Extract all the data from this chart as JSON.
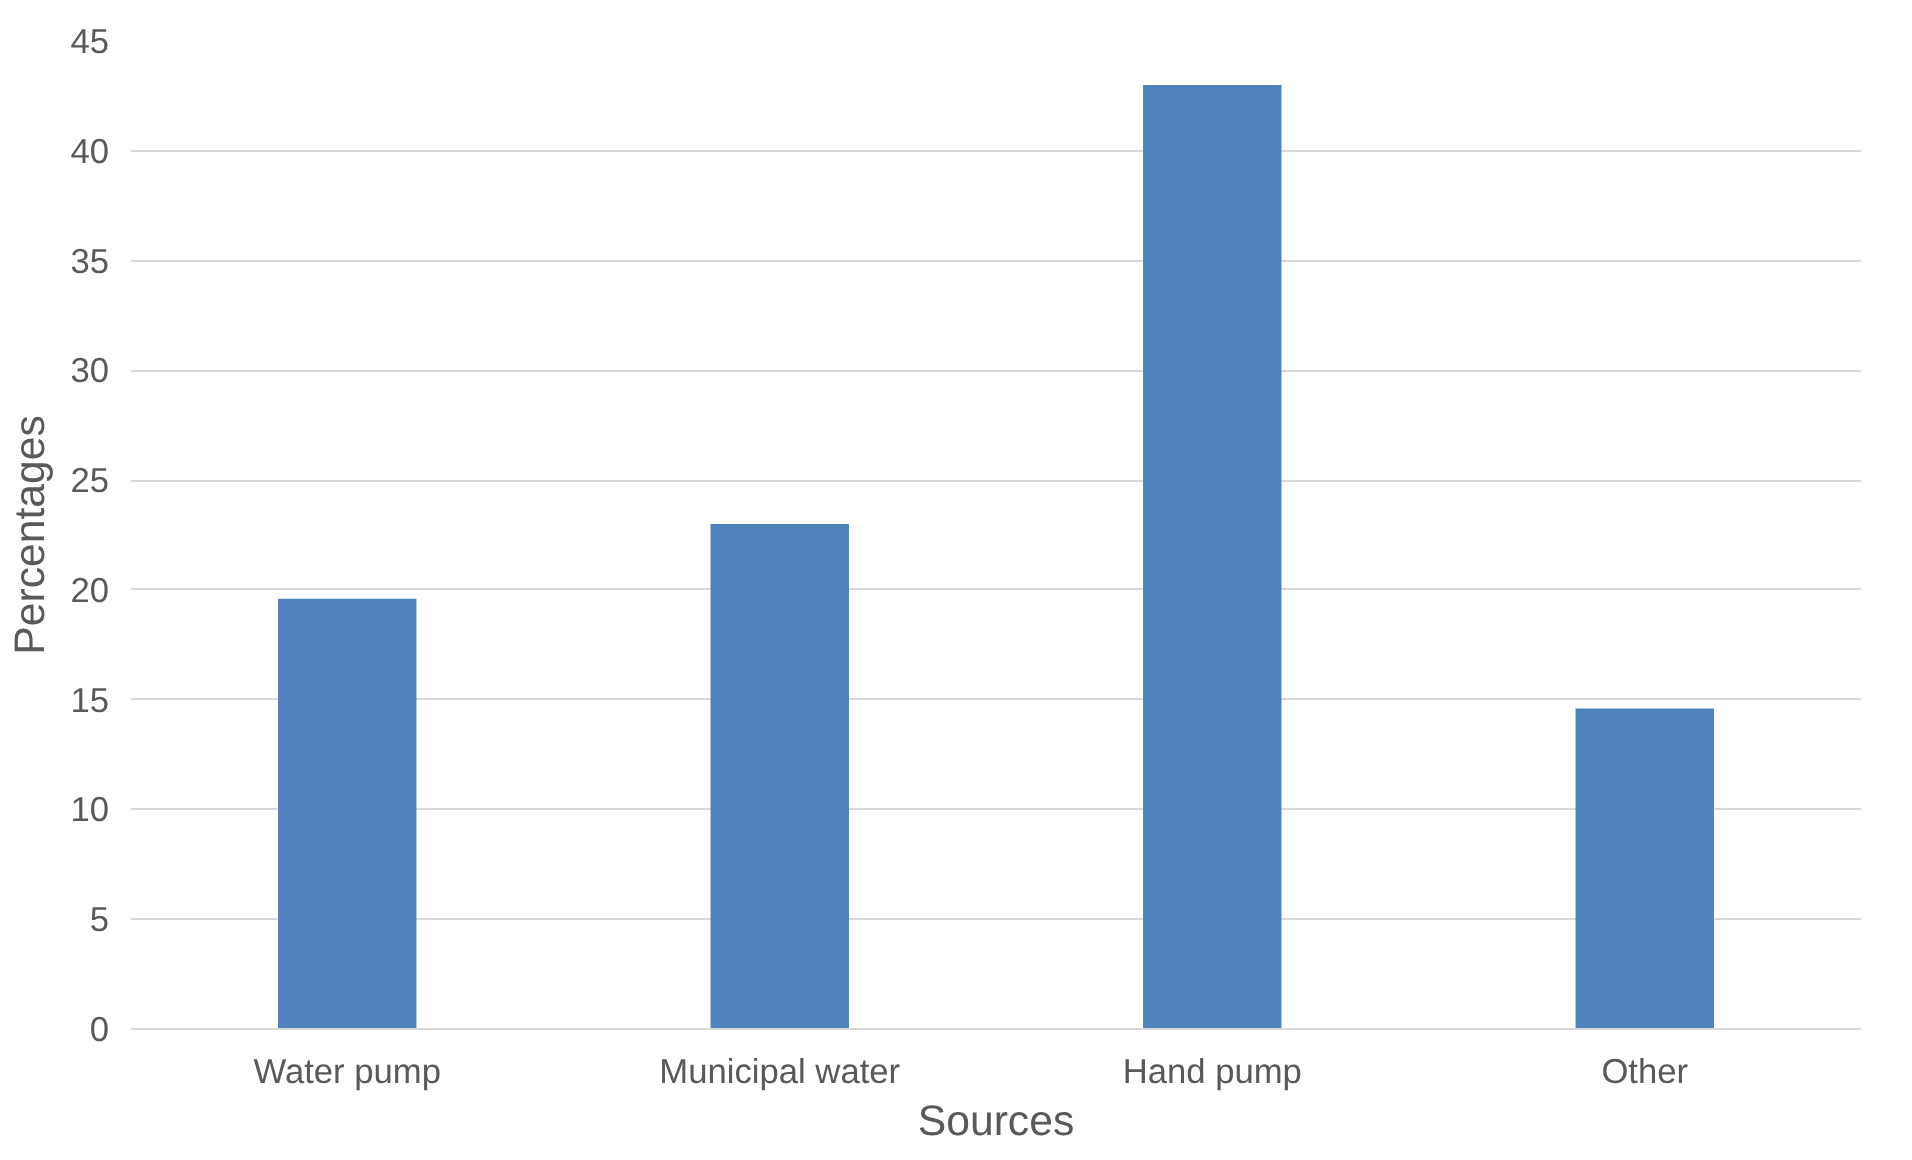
{
  "chart_data": {
    "type": "bar",
    "xlabel": "Sources",
    "ylabel": "Percentages",
    "categories": [
      "Water pump",
      "Municipal water",
      "Hand pump",
      "Other"
    ],
    "values": [
      19.6,
      23.0,
      43.0,
      14.6
    ],
    "color": "#4f81bd",
    "ylim": [
      0,
      45
    ],
    "yticks": [
      0,
      5,
      10,
      15,
      20,
      25,
      30,
      35,
      40,
      45
    ],
    "grid": "y"
  }
}
